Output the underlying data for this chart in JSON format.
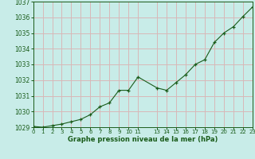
{
  "x": [
    0,
    1,
    2,
    3,
    4,
    5,
    6,
    7,
    8,
    9,
    10,
    11,
    13,
    14,
    15,
    16,
    17,
    18,
    19,
    20,
    21,
    22,
    23
  ],
  "y": [
    1029.05,
    1029.0,
    1029.1,
    1029.2,
    1029.35,
    1029.5,
    1029.8,
    1030.3,
    1030.55,
    1031.35,
    1031.35,
    1032.2,
    1031.5,
    1031.35,
    1031.85,
    1032.35,
    1033.0,
    1033.3,
    1034.4,
    1035.0,
    1035.4,
    1036.05,
    1036.65
  ],
  "ylim": [
    1029,
    1037
  ],
  "xlim": [
    0,
    23
  ],
  "yticks": [
    1029,
    1030,
    1031,
    1032,
    1033,
    1034,
    1035,
    1036,
    1037
  ],
  "xtick_positions": [
    0,
    1,
    2,
    3,
    4,
    5,
    6,
    7,
    8,
    9,
    10,
    11,
    13,
    14,
    15,
    16,
    17,
    18,
    19,
    20,
    21,
    22,
    23
  ],
  "xtick_labels": [
    "0",
    "1",
    "2",
    "3",
    "4",
    "5",
    "6",
    "7",
    "8",
    "9",
    "10",
    "11",
    "13",
    "14",
    "15",
    "16",
    "17",
    "18",
    "19",
    "20",
    "21",
    "22",
    "23"
  ],
  "line_color": "#1a5c1a",
  "marker_color": "#1a5c1a",
  "bg_color": "#c8ece8",
  "grid_color": "#d8b8b8",
  "xlabel": "Graphe pression niveau de la mer (hPa)",
  "xlabel_color": "#1a5c1a",
  "tick_label_color": "#1a5c1a",
  "tick_fontsize": 5.0,
  "ytick_fontsize": 5.5
}
